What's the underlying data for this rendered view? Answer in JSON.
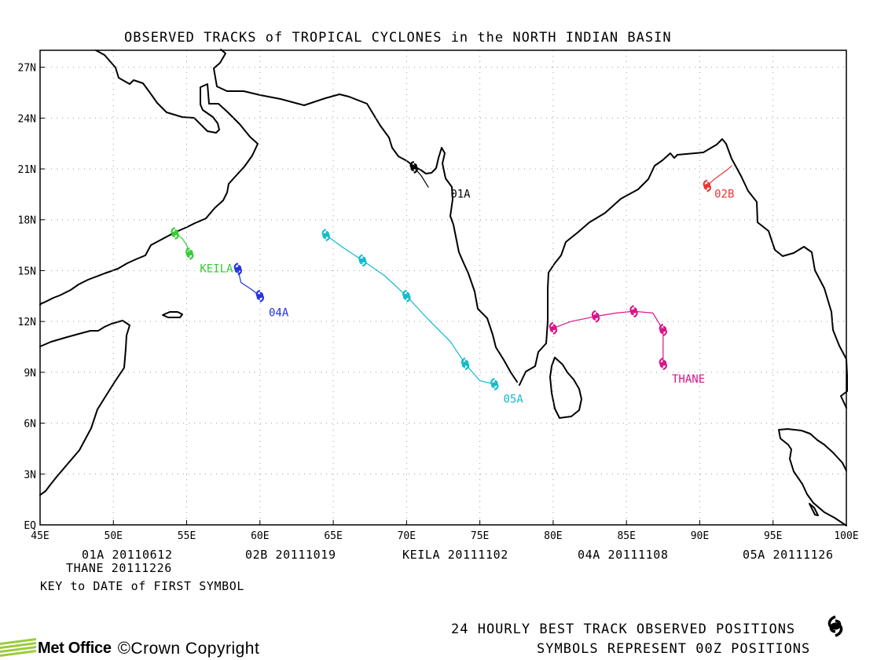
{
  "title": "OBSERVED TRACKS of TROPICAL CYCLONES in the NORTH INDIAN BASIN",
  "axes": {
    "lon_min": 45,
    "lon_max": 100,
    "lat_min": 0,
    "lat_max": 28,
    "x_ticks": [
      {
        "v": 45,
        "label": "45E"
      },
      {
        "v": 50,
        "label": "50E"
      },
      {
        "v": 55,
        "label": "55E"
      },
      {
        "v": 60,
        "label": "60E"
      },
      {
        "v": 65,
        "label": "65E"
      },
      {
        "v": 70,
        "label": "70E"
      },
      {
        "v": 75,
        "label": "75E"
      },
      {
        "v": 80,
        "label": "80E"
      },
      {
        "v": 85,
        "label": "85E"
      },
      {
        "v": 90,
        "label": "90E"
      },
      {
        "v": 95,
        "label": "95E"
      },
      {
        "v": 100,
        "label": "100E"
      }
    ],
    "y_ticks": [
      {
        "v": 0,
        "label": "EQ"
      },
      {
        "v": 3,
        "label": "3N"
      },
      {
        "v": 6,
        "label": "6N"
      },
      {
        "v": 9,
        "label": "9N"
      },
      {
        "v": 12,
        "label": "12N"
      },
      {
        "v": 15,
        "label": "15N"
      },
      {
        "v": 18,
        "label": "18N"
      },
      {
        "v": 21,
        "label": "21N"
      },
      {
        "v": 24,
        "label": "24N"
      },
      {
        "v": 27,
        "label": "27N"
      }
    ]
  },
  "storms": [
    {
      "name": "01A",
      "color": "#000000",
      "track": [
        [
          70.5,
          21.1
        ],
        [
          71.0,
          20.6
        ],
        [
          71.5,
          19.9
        ]
      ],
      "symbols": [
        [
          70.5,
          21.1
        ]
      ],
      "label_pos": [
        73.0,
        19.3
      ]
    },
    {
      "name": "02B",
      "color": "#ee3333",
      "track": [
        [
          90.5,
          20.0
        ],
        [
          91.0,
          20.4
        ],
        [
          91.8,
          20.9
        ],
        [
          92.2,
          21.2
        ]
      ],
      "symbols": [
        [
          90.5,
          20.0
        ]
      ],
      "label_pos": [
        91.0,
        19.3
      ]
    },
    {
      "name": "KEILA",
      "color": "#33cc33",
      "track": [
        [
          54.2,
          17.2
        ],
        [
          54.7,
          16.9
        ],
        [
          55.0,
          16.5
        ],
        [
          55.2,
          16.0
        ]
      ],
      "symbols": [
        [
          54.2,
          17.2
        ],
        [
          55.2,
          16.0
        ]
      ],
      "label_pos": [
        55.9,
        14.9
      ]
    },
    {
      "name": "04A",
      "color": "#2233dd",
      "track": [
        [
          58.5,
          15.1
        ],
        [
          58.7,
          14.3
        ],
        [
          59.4,
          13.9
        ],
        [
          60.0,
          13.5
        ]
      ],
      "symbols": [
        [
          58.5,
          15.1
        ],
        [
          60.0,
          13.5
        ]
      ],
      "label_pos": [
        60.6,
        12.3
      ]
    },
    {
      "name": "05A",
      "color": "#11bbcc",
      "track": [
        [
          64.5,
          17.1
        ],
        [
          65.6,
          16.4
        ],
        [
          67.0,
          15.6
        ],
        [
          68.5,
          14.7
        ],
        [
          70.0,
          13.5
        ],
        [
          71.5,
          12.1
        ],
        [
          73.0,
          10.8
        ],
        [
          74.0,
          9.5
        ],
        [
          75.0,
          8.5
        ],
        [
          76.0,
          8.3
        ]
      ],
      "symbols": [
        [
          64.5,
          17.1
        ],
        [
          67.0,
          15.6
        ],
        [
          70.0,
          13.5
        ],
        [
          74.0,
          9.5
        ],
        [
          76.0,
          8.3
        ]
      ],
      "label_pos": [
        76.6,
        7.2
      ]
    },
    {
      "name": "THANE",
      "color": "#dd1188",
      "track": [
        [
          80.0,
          11.6
        ],
        [
          81.2,
          12.0
        ],
        [
          82.9,
          12.3
        ],
        [
          84.3,
          12.5
        ],
        [
          85.5,
          12.6
        ],
        [
          86.8,
          12.5
        ],
        [
          87.5,
          11.5
        ],
        [
          87.5,
          9.5
        ]
      ],
      "symbols": [
        [
          80.0,
          11.6
        ],
        [
          82.9,
          12.3
        ],
        [
          85.5,
          12.6
        ],
        [
          87.5,
          11.5
        ],
        [
          87.5,
          9.5
        ]
      ],
      "label_pos": [
        88.1,
        8.4
      ]
    }
  ],
  "key": {
    "row1": [
      {
        "text": "01A 20110612"
      },
      {
        "text": "02B 20111019"
      },
      {
        "text": "KEILA 20111102"
      },
      {
        "text": "04A 20111108"
      },
      {
        "text": "05A 20111126"
      }
    ],
    "row2": "THANE 20111226",
    "caption": "KEY to DATE of FIRST SYMBOL"
  },
  "footer": {
    "line1": "24 HOURLY BEST TRACK OBSERVED POSITIONS",
    "line2": "SYMBOLS REPRESENT 00Z POSITIONS",
    "symbol_icon": "cyclone-symbol-icon",
    "brand": "Met Office",
    "copyright_symbol": "©",
    "copyright": "Crown Copyright"
  }
}
